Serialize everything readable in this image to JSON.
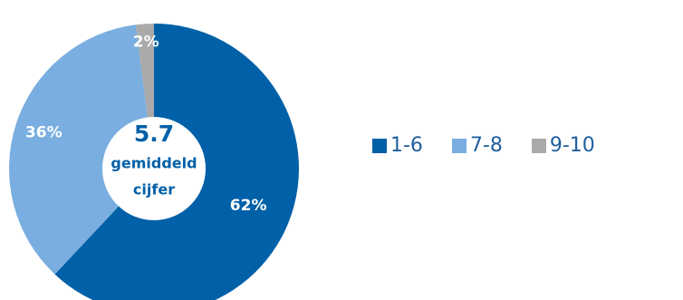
{
  "colors": {
    "series_1_6": "#0060a8",
    "series_7_8": "#7aaee0",
    "series_9_10": "#aaaaaa",
    "center_text": "#0060a8",
    "legend_text": "#1f5f9e"
  },
  "chart_data": {
    "type": "pie",
    "donut": true,
    "categories": [
      "1-6",
      "7-8",
      "9-10"
    ],
    "values": [
      62,
      36,
      2
    ],
    "slice_labels": [
      "62%",
      "36%",
      "2%"
    ],
    "center": {
      "value": "5.7",
      "caption_line1": "gemiddeld",
      "caption_line2": "cijfer"
    },
    "legend": {
      "placement": "right",
      "items": [
        {
          "label": "1-6"
        },
        {
          "label": "7-8"
        },
        {
          "label": "9-10"
        }
      ]
    }
  }
}
